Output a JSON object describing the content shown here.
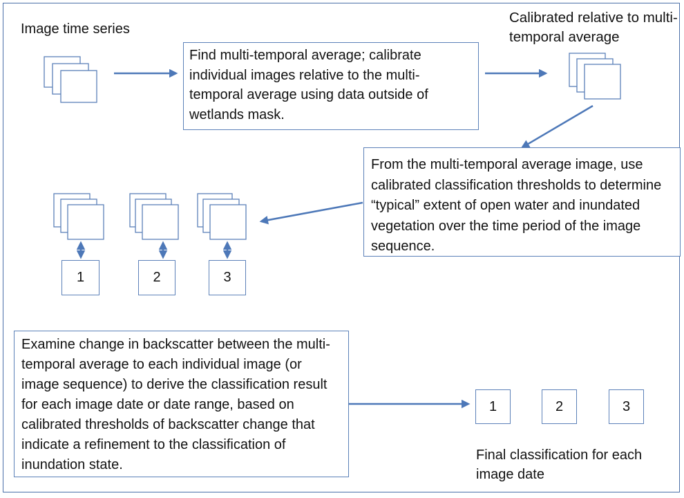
{
  "labels": {
    "image_time_series": "Image time series",
    "calibrated_relative": "Calibrated relative to multi-temporal average",
    "final_classification": "Final classification for each image date"
  },
  "boxes": {
    "step1": "Find multi-temporal average; calibrate individual images relative to the multi-temporal average using data outside of wetlands mask.",
    "step2": "From the multi-temporal average image, use calibrated classification thresholds to determine “typical” extent of open water and inundated vegetation over the time period of the image sequence.",
    "step3": "Examine change in backscatter between the multi-temporal average to each individual image (or image sequence) to derive the classification result for each image date or date range, based on calibrated thresholds of backscatter change  that indicate a refinement to the classification of inundation state."
  },
  "mid_numbers": [
    "1",
    "2",
    "3"
  ],
  "final_numbers": [
    "1",
    "2",
    "3"
  ],
  "colors": {
    "stroke": "#5b80b8",
    "arrow": "#4d78b8",
    "frame": "#4a6fa8"
  }
}
